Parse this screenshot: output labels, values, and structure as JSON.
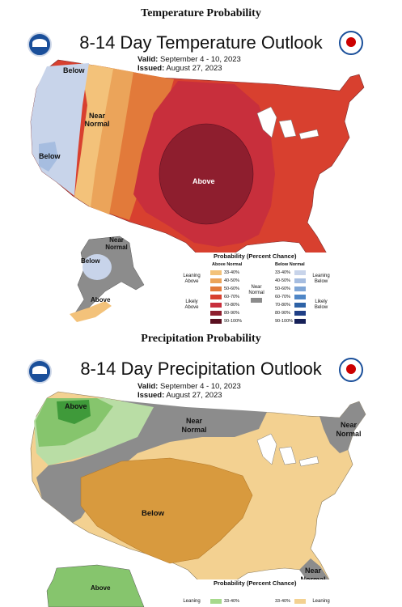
{
  "temperature": {
    "section_title": "Temperature Probability",
    "map_title": "8-14 Day Temperature Outlook",
    "valid_label": "Valid:",
    "valid_value": "September 4 - 10, 2023",
    "issued_label": "Issued:",
    "issued_value": "August 27, 2023",
    "labels": {
      "below_nw": "Below",
      "near_normal": "Near Normal",
      "below_ca": "Below",
      "above": "Above",
      "ak_near_normal": "Near Normal",
      "ak_below": "Below",
      "ak_above": "Above"
    },
    "legend": {
      "title": "Probability (Percent Chance)",
      "above_header": "Above Normal",
      "below_header": "Below Normal",
      "near_header": "Near Normal",
      "leaning_left": "Leaning Above",
      "likely_left": "Likely Above",
      "leaning_right": "Leaning Below",
      "likely_right": "Likely Below",
      "above_bins": [
        "33-40%",
        "40-50%",
        "50-60%",
        "60-70%",
        "70-80%",
        "80-90%",
        "90-100%"
      ],
      "below_bins": [
        "33-40%",
        "40-50%",
        "50-60%",
        "60-70%",
        "70-80%",
        "80-90%",
        "90-100%"
      ],
      "above_colors": [
        "#f3c27a",
        "#eba45a",
        "#e27a3a",
        "#d8402f",
        "#c82f3c",
        "#8e1e2e",
        "#5a1020"
      ],
      "below_colors": [
        "#c8d4ea",
        "#a6bde0",
        "#7fa6d6",
        "#4f86c6",
        "#2d62a6",
        "#1f3f86",
        "#162058"
      ],
      "near_color": "#8c8c8c"
    }
  },
  "precipitation": {
    "section_title": "Precipitation Probability",
    "map_title": "8-14 Day Precipitation Outlook",
    "valid_label": "Valid:",
    "valid_value": "September 4 - 10, 2023",
    "issued_label": "Issued:",
    "issued_value": "August 27, 2023",
    "labels": {
      "above_nw": "Above",
      "near_normal_n": "Near Normal",
      "near_normal_ne": "Near Normal",
      "below": "Below",
      "near_normal_se": "Near Normal",
      "ak_above": "Above"
    },
    "legend": {
      "title": "Probability (Percent Chance)",
      "leaning_left": "Leaning",
      "leaning_right": "Leaning",
      "left_first_bin": "33-40%",
      "right_first_bin": "33-40%"
    }
  }
}
